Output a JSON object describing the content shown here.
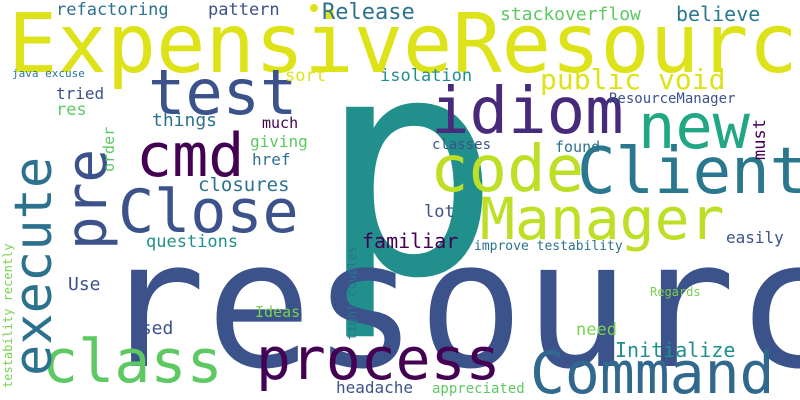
{
  "words": [
    {
      "id": "p",
      "text": "p",
      "color": "#21908c"
    },
    {
      "id": "resource",
      "text": "resource",
      "color": "#3b528b"
    },
    {
      "id": "expensive-resource",
      "text": "ExpensiveResource",
      "color": "#dde318"
    },
    {
      "id": "test",
      "text": "test",
      "color": "#3b528b"
    },
    {
      "id": "idiom",
      "text": "idiom",
      "color": "#472a7a"
    },
    {
      "id": "new",
      "text": "new",
      "color": "#22a785"
    },
    {
      "id": "code",
      "text": "code",
      "color": "#bddf26"
    },
    {
      "id": "client",
      "text": "Client",
      "color": "#2a788e"
    },
    {
      "id": "pre",
      "text": "pre",
      "color": "#3b528b"
    },
    {
      "id": "cmd",
      "text": "cmd",
      "color": "#440154"
    },
    {
      "id": "execute",
      "text": "execute",
      "color": "#2c728e"
    },
    {
      "id": "close",
      "text": "Close",
      "color": "#3b528b"
    },
    {
      "id": "manager",
      "text": "Manager",
      "color": "#bddf26"
    },
    {
      "id": "class",
      "text": "class",
      "color": "#5ec962"
    },
    {
      "id": "process",
      "text": "process",
      "color": "#440154"
    },
    {
      "id": "command",
      "text": "Command",
      "color": "#31688e"
    },
    {
      "id": "public-void",
      "text": "public void",
      "color": "#dde318"
    },
    {
      "id": "release",
      "text": "Release",
      "color": "#2c728e"
    },
    {
      "id": "stackoverflow",
      "text": "stackoverflow",
      "color": "#5ec962"
    },
    {
      "id": "believe",
      "text": "believe",
      "color": "#2a788e"
    },
    {
      "id": "refactoring",
      "text": "refactoring",
      "color": "#2c728e"
    },
    {
      "id": "pattern",
      "text": "pattern",
      "color": "#3b528b"
    },
    {
      "id": "sort",
      "text": "sort",
      "color": "#dde318"
    },
    {
      "id": "isolation",
      "text": "isolation",
      "color": "#21908c"
    },
    {
      "id": "java-excuse",
      "text": "java excuse",
      "color": "#2a788e"
    },
    {
      "id": "tried",
      "text": "tried",
      "color": "#3b528b"
    },
    {
      "id": "res",
      "text": "res",
      "color": "#5ec962"
    },
    {
      "id": "things",
      "text": "things",
      "color": "#2c728e"
    },
    {
      "id": "much",
      "text": "much",
      "color": "#440154"
    },
    {
      "id": "resource-manager",
      "text": "ResourceManager",
      "color": "#3b528b"
    },
    {
      "id": "must",
      "text": "must",
      "color": "#440154"
    },
    {
      "id": "giving",
      "text": "giving",
      "color": "#5ec962"
    },
    {
      "id": "href",
      "text": "href",
      "color": "#2c728e"
    },
    {
      "id": "classes",
      "text": "classes",
      "color": "#3b528b"
    },
    {
      "id": "found",
      "text": "found",
      "color": "#2c728e"
    },
    {
      "id": "order",
      "text": "order",
      "color": "#5ec962"
    },
    {
      "id": "closures",
      "text": "closures",
      "color": "#2c728e"
    },
    {
      "id": "lot",
      "text": "lot",
      "color": "#3b528b"
    },
    {
      "id": "questions",
      "text": "questions",
      "color": "#21908c"
    },
    {
      "id": "familiar",
      "text": "familiar",
      "color": "#440154"
    },
    {
      "id": "improve-testability",
      "text": "improve testability",
      "color": "#2c728e"
    },
    {
      "id": "easily",
      "text": "easily",
      "color": "#3b528b"
    },
    {
      "id": "testability-recently",
      "text": "testability recently",
      "color": "#7ad151"
    },
    {
      "id": "use",
      "text": "Use",
      "color": "#3b528b"
    },
    {
      "id": "tight-couples",
      "text": "tight couples",
      "color": "#2c728e"
    },
    {
      "id": "ideas",
      "text": "Ideas",
      "color": "#7ad151"
    },
    {
      "id": "regards",
      "text": "Regards",
      "color": "#7ad151"
    },
    {
      "id": "used",
      "text": "used",
      "color": "#3b528b"
    },
    {
      "id": "need",
      "text": "need",
      "color": "#7ad151"
    },
    {
      "id": "initialize",
      "text": "Initialize",
      "color": "#21908c"
    },
    {
      "id": "headache",
      "text": "headache",
      "color": "#3b528b"
    },
    {
      "id": "appreciated",
      "text": "appreciated",
      "color": "#5ec962"
    }
  ]
}
